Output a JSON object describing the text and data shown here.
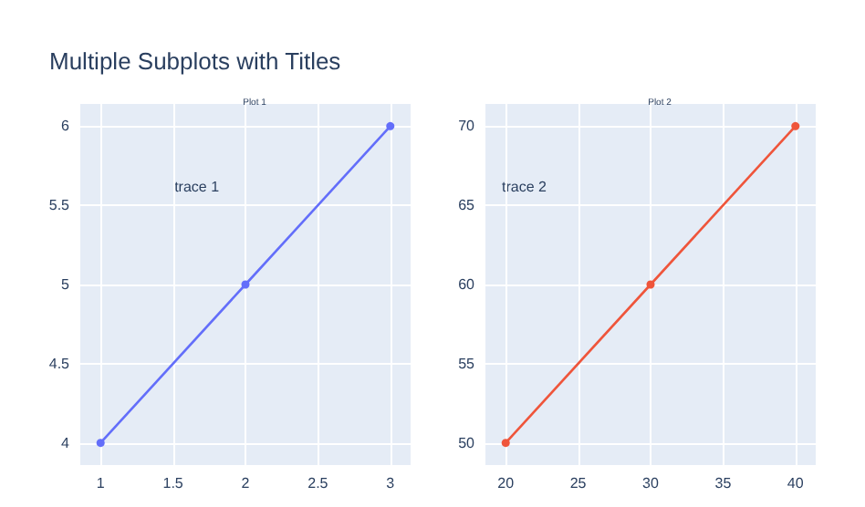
{
  "chart_data": [
    {
      "type": "line",
      "title": "Multiple Subplots with Titles",
      "subtitle": "Plot 1",
      "x": [
        1,
        2,
        3
      ],
      "series": [
        {
          "color": "#636efa",
          "values": [
            4,
            5,
            6
          ]
        }
      ],
      "xlim": [
        0.86,
        3.14
      ],
      "ylim": [
        3.86,
        6.14
      ],
      "xticks": [
        1,
        1.5,
        2,
        2.5,
        3
      ],
      "yticks": [
        4,
        4.5,
        5,
        5.5,
        6
      ],
      "grid": true,
      "marker": "circle",
      "line_style": "solid",
      "annotations": [
        "trace 1"
      ]
    },
    {
      "type": "line",
      "subtitle": "Plot 2",
      "x": [
        20,
        30,
        40
      ],
      "series": [
        {
          "color": "#ef553b",
          "values": [
            50,
            60,
            70
          ]
        }
      ],
      "xlim": [
        18.6,
        41.4
      ],
      "ylim": [
        48.6,
        71.4
      ],
      "xticks": [
        20,
        25,
        30,
        35,
        40
      ],
      "yticks": [
        50,
        55,
        60,
        65,
        70
      ],
      "grid": true,
      "marker": "circle",
      "line_style": "solid",
      "annotations": [
        "trace 2"
      ]
    }
  ]
}
